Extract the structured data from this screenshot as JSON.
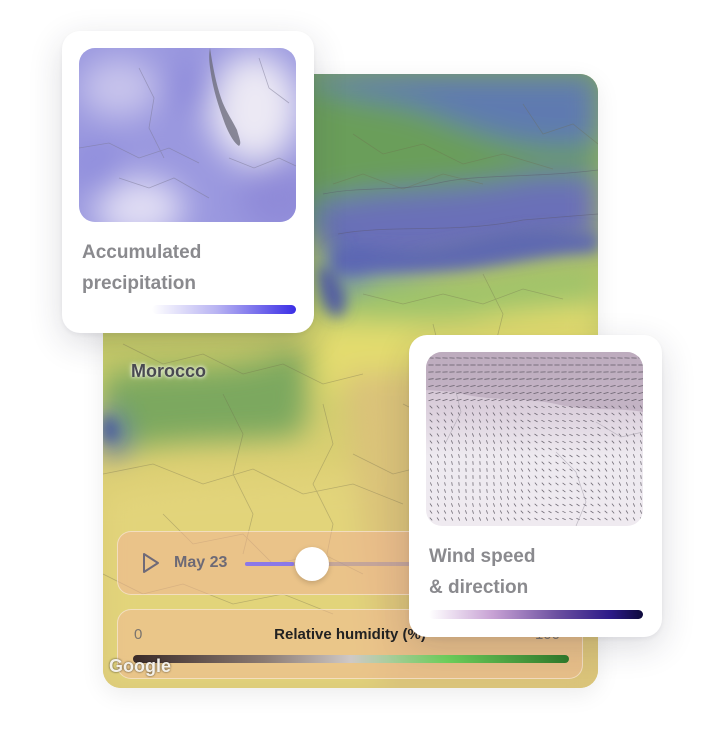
{
  "map": {
    "country_label": "Morocco",
    "logo_text": "Google"
  },
  "time_control": {
    "date": "May 23",
    "progress": 0.18
  },
  "humidity_legend": {
    "title": "Relative humidity (%)",
    "min": "0",
    "max": "100"
  },
  "precip_card": {
    "title": "Accumulated\nprecipitation"
  },
  "wind_card": {
    "title": "Wind speed\n & direction"
  },
  "icons": {
    "play": "play-icon"
  },
  "colors": {
    "precip_accent": "#3b2ee6",
    "slider_fill": "#8b78e8",
    "wind_dark": "#0e0a3c",
    "humidity_wet": "#2f7a2a"
  }
}
